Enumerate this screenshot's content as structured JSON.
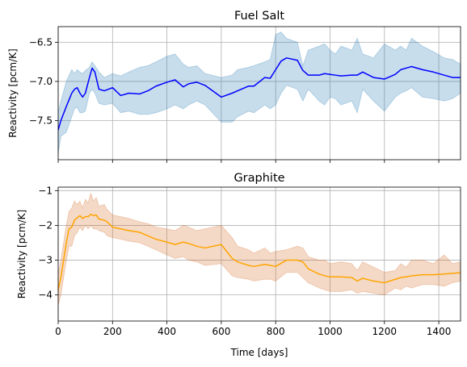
{
  "chart_data": [
    {
      "type": "line",
      "title": "Fuel Salt",
      "xlabel": "",
      "ylabel": "Reactivity [pcm/K]",
      "xlim": [
        0,
        1480
      ],
      "ylim": [
        -8.0,
        -6.3
      ],
      "xticks": [
        0,
        200,
        400,
        600,
        800,
        1000,
        1200,
        1400
      ],
      "xtick_labels": [],
      "yticks": [
        -7.5,
        -7.0,
        -6.5
      ],
      "ytick_labels": [
        "−7.5",
        "−7.0",
        "−6.5"
      ],
      "grid": true,
      "series": [
        {
          "name": "mean",
          "color": "#0000ff",
          "x": [
            0,
            10,
            30,
            50,
            60,
            70,
            80,
            90,
            100,
            115,
            125,
            135,
            150,
            170,
            200,
            230,
            260,
            300,
            330,
            360,
            400,
            430,
            460,
            480,
            510,
            540,
            600,
            640,
            660,
            700,
            720,
            760,
            780,
            800,
            820,
            840,
            880,
            900,
            920,
            960,
            980,
            1000,
            1020,
            1040,
            1080,
            1100,
            1120,
            1160,
            1200,
            1240,
            1260,
            1280,
            1300,
            1340,
            1380,
            1420,
            1450,
            1480
          ],
          "y": [
            -7.62,
            -7.5,
            -7.32,
            -7.15,
            -7.1,
            -7.08,
            -7.15,
            -7.2,
            -7.15,
            -6.95,
            -6.83,
            -6.88,
            -7.1,
            -7.12,
            -7.08,
            -7.18,
            -7.15,
            -7.16,
            -7.12,
            -7.06,
            -7.01,
            -6.98,
            -7.07,
            -7.03,
            -7.01,
            -7.05,
            -7.2,
            -7.15,
            -7.12,
            -7.06,
            -7.06,
            -6.95,
            -6.96,
            -6.85,
            -6.74,
            -6.7,
            -6.73,
            -6.86,
            -6.92,
            -6.92,
            -6.9,
            -6.91,
            -6.92,
            -6.93,
            -6.92,
            -6.92,
            -6.88,
            -6.95,
            -6.97,
            -6.91,
            -6.85,
            -6.83,
            -6.81,
            -6.85,
            -6.88,
            -6.92,
            -6.95,
            -6.95
          ]
        }
      ],
      "band": {
        "name": "uncertainty",
        "color": "#1f77b4",
        "opacity": 0.25,
        "x": [
          0,
          10,
          30,
          50,
          60,
          70,
          80,
          90,
          100,
          115,
          125,
          135,
          150,
          170,
          200,
          230,
          260,
          300,
          330,
          360,
          400,
          430,
          460,
          480,
          510,
          540,
          600,
          640,
          660,
          700,
          720,
          760,
          780,
          800,
          820,
          840,
          880,
          900,
          920,
          960,
          980,
          1000,
          1020,
          1040,
          1080,
          1100,
          1120,
          1160,
          1200,
          1240,
          1260,
          1280,
          1300,
          1340,
          1380,
          1420,
          1450,
          1480
        ],
        "upper": [
          -7.4,
          -7.25,
          -7.0,
          -6.85,
          -6.9,
          -6.85,
          -6.88,
          -6.9,
          -6.86,
          -6.82,
          -6.75,
          -6.8,
          -6.88,
          -6.95,
          -6.9,
          -6.93,
          -6.88,
          -6.82,
          -6.8,
          -6.75,
          -6.68,
          -6.65,
          -6.78,
          -6.82,
          -6.8,
          -6.9,
          -6.95,
          -6.92,
          -6.85,
          -6.82,
          -6.8,
          -6.75,
          -6.72,
          -6.4,
          -6.37,
          -6.45,
          -6.5,
          -6.8,
          -6.6,
          -6.55,
          -6.52,
          -6.6,
          -6.65,
          -6.55,
          -6.6,
          -6.45,
          -6.65,
          -6.7,
          -6.52,
          -6.6,
          -6.55,
          -6.6,
          -6.45,
          -6.55,
          -6.62,
          -6.7,
          -6.72,
          -6.78
        ],
        "lower": [
          -7.92,
          -7.7,
          -7.65,
          -7.45,
          -7.35,
          -7.33,
          -7.4,
          -7.4,
          -7.38,
          -7.15,
          -7.1,
          -7.15,
          -7.28,
          -7.3,
          -7.28,
          -7.4,
          -7.38,
          -7.42,
          -7.42,
          -7.4,
          -7.35,
          -7.3,
          -7.35,
          -7.3,
          -7.25,
          -7.3,
          -7.52,
          -7.52,
          -7.45,
          -7.38,
          -7.4,
          -7.3,
          -7.35,
          -7.3,
          -7.15,
          -7.05,
          -7.1,
          -7.25,
          -7.1,
          -7.25,
          -7.3,
          -7.2,
          -7.22,
          -7.3,
          -7.25,
          -7.4,
          -7.1,
          -7.25,
          -7.38,
          -7.2,
          -7.15,
          -7.12,
          -7.08,
          -7.2,
          -7.22,
          -7.25,
          -7.22,
          -7.15
        ]
      }
    },
    {
      "type": "line",
      "title": "Graphite",
      "xlabel": "Time [days]",
      "ylabel": "Reactivity [pcm/K]",
      "xlim": [
        0,
        1480
      ],
      "ylim": [
        -4.75,
        -0.9
      ],
      "xticks": [
        0,
        200,
        400,
        600,
        800,
        1000,
        1200,
        1400
      ],
      "xtick_labels": [
        "0",
        "200",
        "400",
        "600",
        "800",
        "1000",
        "1200",
        "1400"
      ],
      "yticks": [
        -4,
        -3,
        -2,
        -1
      ],
      "ytick_labels": [
        "−4",
        "−3",
        "−2",
        "−1"
      ],
      "grid": true,
      "series": [
        {
          "name": "mean",
          "color": "#ffa500",
          "x": [
            0,
            10,
            30,
            40,
            50,
            60,
            70,
            80,
            90,
            100,
            110,
            120,
            130,
            140,
            150,
            170,
            180,
            200,
            230,
            260,
            300,
            330,
            360,
            400,
            430,
            460,
            480,
            510,
            540,
            600,
            640,
            660,
            700,
            720,
            760,
            780,
            800,
            840,
            880,
            900,
            920,
            960,
            980,
            1000,
            1040,
            1080,
            1100,
            1120,
            1160,
            1200,
            1240,
            1260,
            1280,
            1300,
            1340,
            1380,
            1420,
            1450,
            1480
          ],
          "y": [
            -3.85,
            -3.5,
            -2.5,
            -2.1,
            -2.05,
            -1.85,
            -1.78,
            -1.72,
            -1.8,
            -1.75,
            -1.75,
            -1.68,
            -1.72,
            -1.7,
            -1.82,
            -1.85,
            -1.9,
            -2.05,
            -2.1,
            -2.15,
            -2.2,
            -2.3,
            -2.4,
            -2.48,
            -2.55,
            -2.48,
            -2.52,
            -2.6,
            -2.65,
            -2.55,
            -2.95,
            -3.05,
            -3.15,
            -3.18,
            -3.12,
            -3.15,
            -3.18,
            -3.0,
            -3.0,
            -3.05,
            -3.25,
            -3.4,
            -3.45,
            -3.48,
            -3.48,
            -3.5,
            -3.6,
            -3.52,
            -3.6,
            -3.65,
            -3.55,
            -3.5,
            -3.48,
            -3.45,
            -3.42,
            -3.42,
            -3.4,
            -3.38,
            -3.36
          ]
        }
      ],
      "band": {
        "name": "uncertainty",
        "color": "#d2691e",
        "opacity": 0.25,
        "x": [
          0,
          10,
          30,
          40,
          50,
          60,
          70,
          80,
          90,
          100,
          110,
          120,
          130,
          140,
          150,
          170,
          180,
          200,
          230,
          260,
          300,
          330,
          360,
          400,
          430,
          460,
          480,
          510,
          540,
          600,
          640,
          660,
          700,
          720,
          760,
          780,
          800,
          840,
          880,
          900,
          920,
          960,
          980,
          1000,
          1040,
          1080,
          1100,
          1120,
          1160,
          1200,
          1240,
          1260,
          1280,
          1300,
          1340,
          1380,
          1420,
          1450,
          1480
        ],
        "upper": [
          -3.4,
          -3.0,
          -2.0,
          -1.6,
          -1.5,
          -1.3,
          -1.4,
          -1.3,
          -1.5,
          -1.25,
          -1.35,
          -1.08,
          -1.3,
          -1.2,
          -1.45,
          -1.4,
          -1.55,
          -1.7,
          -1.75,
          -1.8,
          -1.9,
          -1.95,
          -2.05,
          -2.1,
          -2.15,
          -2.0,
          -2.05,
          -2.15,
          -2.1,
          -2.0,
          -2.35,
          -2.6,
          -2.7,
          -2.8,
          -2.65,
          -2.8,
          -2.75,
          -2.7,
          -2.6,
          -2.65,
          -2.9,
          -3.0,
          -3.0,
          -3.1,
          -3.05,
          -3.1,
          -3.3,
          -3.05,
          -3.2,
          -3.35,
          -3.3,
          -3.1,
          -3.2,
          -3.0,
          -3.0,
          -3.1,
          -2.85,
          -3.1,
          -3.05
        ],
        "lower": [
          -4.3,
          -4.0,
          -3.0,
          -2.6,
          -2.6,
          -2.3,
          -2.2,
          -2.05,
          -2.15,
          -2.0,
          -2.1,
          -2.0,
          -2.1,
          -2.1,
          -2.15,
          -2.2,
          -2.3,
          -2.35,
          -2.4,
          -2.45,
          -2.5,
          -2.6,
          -2.7,
          -2.85,
          -2.95,
          -2.9,
          -3.0,
          -3.05,
          -3.15,
          -3.1,
          -3.45,
          -3.5,
          -3.55,
          -3.6,
          -3.55,
          -3.55,
          -3.6,
          -3.35,
          -3.35,
          -3.5,
          -3.65,
          -3.8,
          -3.85,
          -3.9,
          -3.9,
          -3.85,
          -3.95,
          -3.9,
          -3.95,
          -4.0,
          -3.8,
          -3.85,
          -3.75,
          -3.8,
          -3.7,
          -3.7,
          -3.75,
          -3.65,
          -3.6
        ]
      }
    }
  ]
}
